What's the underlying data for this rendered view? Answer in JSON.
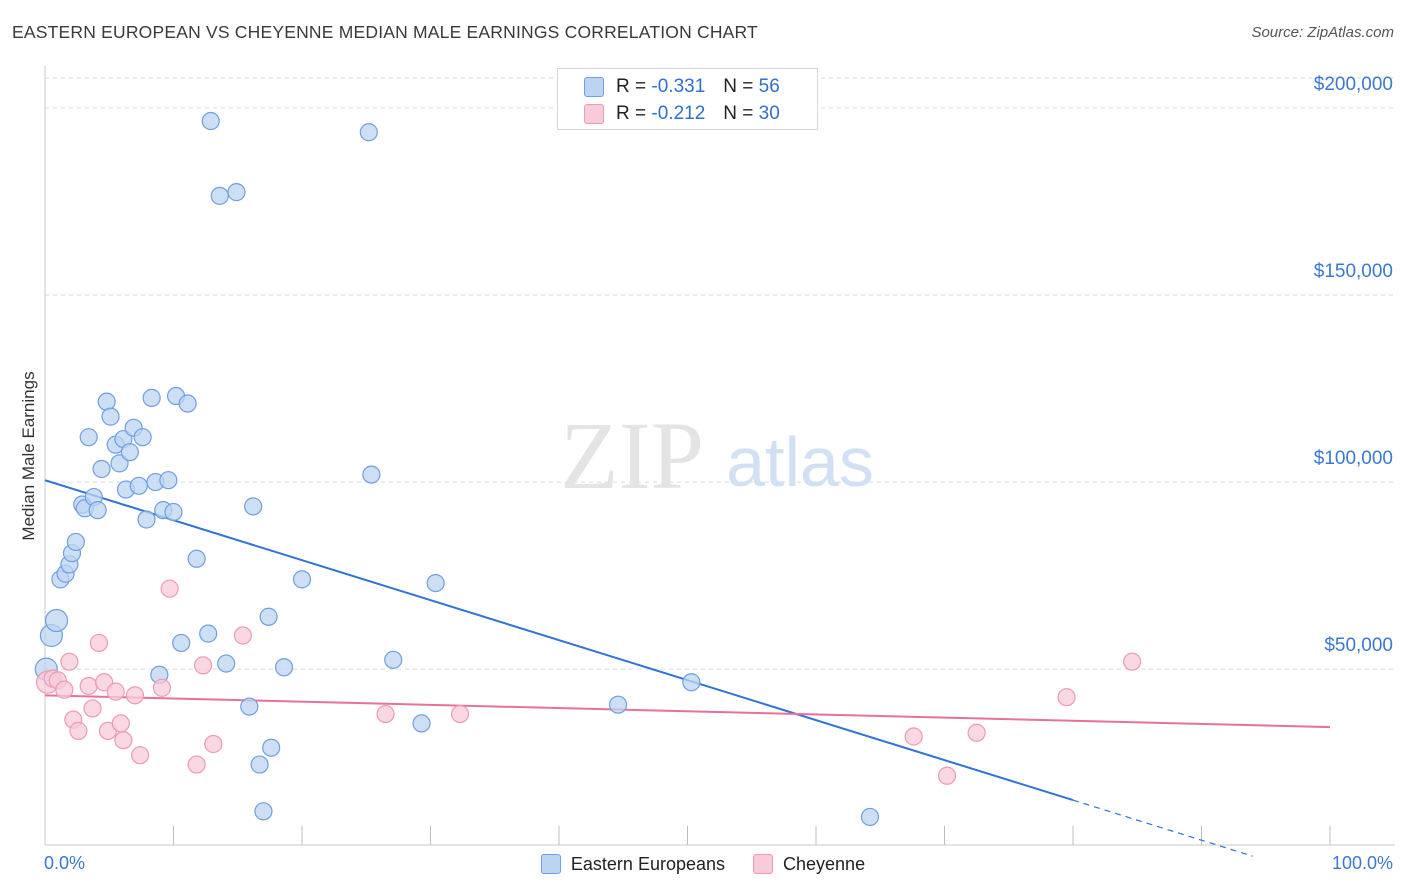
{
  "title": "EASTERN EUROPEAN VS CHEYENNE MEDIAN MALE EARNINGS CORRELATION CHART",
  "source": "Source: ZipAtlas.com",
  "watermark": {
    "zip": "ZIP",
    "atlas": "atlas"
  },
  "legend_top": [
    {
      "r_label": "R =",
      "r_value": "-0.331",
      "n_label": "N =",
      "n_value": "56"
    },
    {
      "r_label": "R =",
      "r_value": "-0.212",
      "n_label": "N =",
      "n_value": "30"
    }
  ],
  "colors": {
    "blue_fill": "#bcd4f2",
    "blue_stroke": "#6e9fe0",
    "blue_line": "#2f73d6",
    "pink_fill": "#f8cbd9",
    "pink_stroke": "#ee9ab4",
    "pink_line": "#e8709a",
    "tick_label": "#3a78d4",
    "grid": "#d9d9d9"
  },
  "chart_data": {
    "type": "scatter",
    "title": "EASTERN EUROPEAN VS CHEYENNE MEDIAN MALE EARNINGS CORRELATION CHART",
    "xlabel": "",
    "ylabel": "Median Male Earnings",
    "xlim": [
      0,
      100
    ],
    "ylim": [
      3000,
      208000
    ],
    "x_tick_labels": [
      "0.0%",
      "100.0%"
    ],
    "y_ticks": [
      50000,
      100000,
      150000,
      200000
    ],
    "y_tick_labels": [
      "$50,000",
      "$100,000",
      "$150,000",
      "$200,000"
    ],
    "grid": true,
    "legend_position": "bottom",
    "series": [
      {
        "name": "Eastern Europeans",
        "points": [
          [
            0.1,
            50000
          ],
          [
            0.5,
            59000
          ],
          [
            0.9,
            63000
          ],
          [
            1.2,
            74000
          ],
          [
            1.6,
            75500
          ],
          [
            1.9,
            78000
          ],
          [
            2.1,
            81000
          ],
          [
            2.4,
            84000
          ],
          [
            2.9,
            94000
          ],
          [
            3.1,
            93000
          ],
          [
            3.4,
            112000
          ],
          [
            3.8,
            96000
          ],
          [
            4.1,
            92500
          ],
          [
            4.4,
            103500
          ],
          [
            4.8,
            121500
          ],
          [
            5.1,
            117500
          ],
          [
            5.5,
            110000
          ],
          [
            5.8,
            105000
          ],
          [
            6.1,
            111500
          ],
          [
            6.3,
            98000
          ],
          [
            6.6,
            108000
          ],
          [
            6.9,
            114500
          ],
          [
            7.3,
            99000
          ],
          [
            7.6,
            112000
          ],
          [
            7.9,
            90000
          ],
          [
            8.3,
            122500
          ],
          [
            8.6,
            100000
          ],
          [
            8.9,
            48500
          ],
          [
            9.2,
            92500
          ],
          [
            9.6,
            100500
          ],
          [
            10.0,
            92000
          ],
          [
            10.2,
            123000
          ],
          [
            10.6,
            57000
          ],
          [
            11.1,
            121000
          ],
          [
            11.8,
            79500
          ],
          [
            12.7,
            59500
          ],
          [
            12.9,
            196500
          ],
          [
            13.6,
            176500
          ],
          [
            14.1,
            51500
          ],
          [
            14.9,
            177500
          ],
          [
            15.9,
            40000
          ],
          [
            16.2,
            93500
          ],
          [
            16.7,
            24500
          ],
          [
            17.0,
            12000
          ],
          [
            17.4,
            64000
          ],
          [
            17.6,
            29000
          ],
          [
            18.6,
            50500
          ],
          [
            20.0,
            74000
          ],
          [
            25.2,
            193500
          ],
          [
            25.4,
            102000
          ],
          [
            27.1,
            52500
          ],
          [
            29.3,
            35500
          ],
          [
            30.4,
            73000
          ],
          [
            44.6,
            40500
          ],
          [
            50.3,
            46500
          ],
          [
            64.2,
            10500
          ]
        ]
      },
      {
        "name": "Cheyenne",
        "points": [
          [
            0.2,
            46500
          ],
          [
            0.6,
            47500
          ],
          [
            1.0,
            47000
          ],
          [
            1.5,
            44500
          ],
          [
            1.9,
            52000
          ],
          [
            2.2,
            36500
          ],
          [
            2.6,
            33500
          ],
          [
            3.4,
            45500
          ],
          [
            3.7,
            39500
          ],
          [
            4.2,
            57000
          ],
          [
            4.6,
            46500
          ],
          [
            4.9,
            33500
          ],
          [
            5.5,
            44000
          ],
          [
            5.9,
            35500
          ],
          [
            6.1,
            31000
          ],
          [
            7.0,
            43000
          ],
          [
            7.4,
            27000
          ],
          [
            9.1,
            45000
          ],
          [
            9.7,
            71500
          ],
          [
            11.8,
            24500
          ],
          [
            12.3,
            51000
          ],
          [
            13.1,
            30000
          ],
          [
            15.4,
            59000
          ],
          [
            26.5,
            38000
          ],
          [
            32.3,
            38000
          ],
          [
            67.6,
            32000
          ],
          [
            70.2,
            21500
          ],
          [
            72.5,
            33000
          ],
          [
            79.5,
            42500
          ],
          [
            84.6,
            52000
          ]
        ]
      }
    ],
    "trendlines": [
      {
        "series": "Eastern Europeans",
        "from": [
          0,
          100500
        ],
        "to": [
          80,
          15000
        ],
        "dashed_to": [
          94,
          0
        ]
      },
      {
        "series": "Cheyenne",
        "from": [
          0,
          43000
        ],
        "to": [
          100,
          34500
        ]
      }
    ]
  }
}
